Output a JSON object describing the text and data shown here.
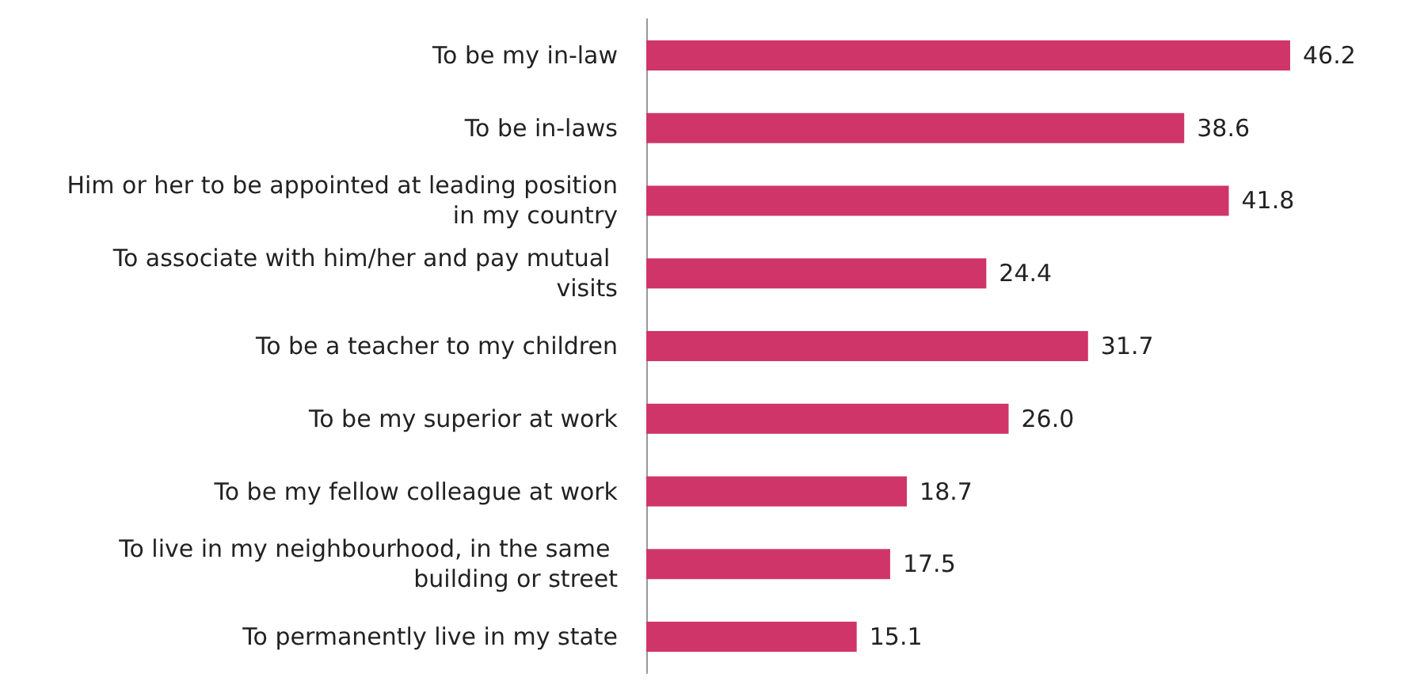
{
  "chart_data": {
    "type": "bar",
    "orientation": "horizontal",
    "categories": [
      "To be my in-law",
      "To be in-laws",
      "Him or her to be appointed at leading position in my country",
      "To associate with him/her and pay mutual visits",
      "To be a teacher to my children",
      "To be my superior at work",
      "To be my fellow colleague at work",
      "To live in my neighbourhood, in the same building or street",
      "To permanently live in my state"
    ],
    "values": [
      46.2,
      38.6,
      41.8,
      24.4,
      31.7,
      26.0,
      18.7,
      17.5,
      15.1
    ],
    "value_labels": [
      "46.2",
      "38.6",
      "41.8",
      "24.4",
      "31.7",
      "26.0",
      "18.7",
      "17.5",
      "15.1"
    ],
    "color": "#d0356a",
    "tick_labels": "y"
  }
}
